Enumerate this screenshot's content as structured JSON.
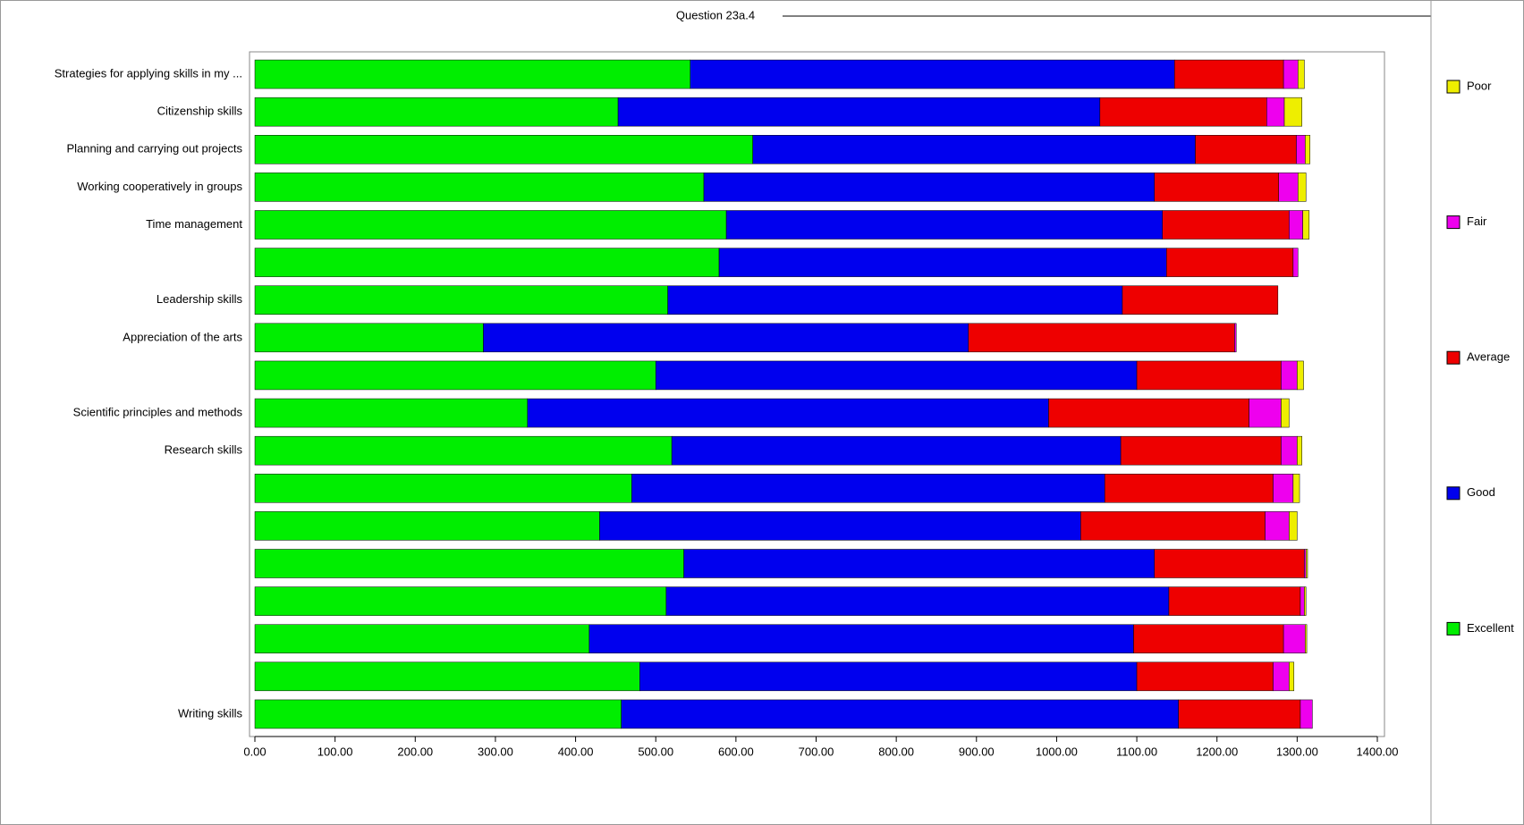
{
  "chart_data": {
    "type": "stacked-bar-horizontal",
    "title": "Question 23a.4",
    "categories": [
      "Strategies for applying skills in my ...",
      "Citizenship skills",
      "Planning and carrying out projects",
      "Working cooperatively in groups",
      "Time management",
      null,
      "Leadership skills",
      "Appreciation of the arts",
      null,
      "Scientific principles and methods",
      "Research skills",
      null,
      null,
      null,
      null,
      null,
      null,
      "Writing skills"
    ],
    "series": [
      {
        "name": "Excellent",
        "color": "#00ee00",
        "values": [
          543,
          453,
          621,
          560,
          588,
          579,
          515,
          285,
          500,
          340,
          520,
          470,
          430,
          535,
          513,
          417,
          480,
          457
        ]
      },
      {
        "name": "Good",
        "color": "#0000ee",
        "values": [
          604,
          601,
          552,
          562,
          544,
          558,
          567,
          605,
          600,
          650,
          560,
          590,
          600,
          587,
          627,
          679,
          620,
          695
        ]
      },
      {
        "name": "Average",
        "color": "#ee0000",
        "values": [
          136,
          208,
          126,
          155,
          158,
          158,
          194,
          332,
          180,
          250,
          200,
          210,
          230,
          187,
          164,
          187,
          170,
          152
        ]
      },
      {
        "name": "Fair",
        "color": "#ee00ee",
        "values": [
          18,
          22,
          11,
          24,
          17,
          6,
          0,
          2,
          20,
          40,
          20,
          25,
          30,
          2,
          5,
          27,
          20,
          15
        ]
      },
      {
        "name": "Poor",
        "color": "#eeee00",
        "values": [
          8,
          22,
          6,
          10,
          8,
          0,
          0,
          0,
          8,
          10,
          6,
          8,
          10,
          2,
          2,
          2,
          6,
          0
        ]
      }
    ],
    "xlim": [
      0,
      1400
    ],
    "xticks": [
      {
        "value": 0,
        "label": "0.00"
      },
      {
        "value": 100,
        "label": "100.00"
      },
      {
        "value": 200,
        "label": "200.00"
      },
      {
        "value": 300,
        "label": "300.00"
      },
      {
        "value": 400,
        "label": "400.00"
      },
      {
        "value": 500,
        "label": "500.00"
      },
      {
        "value": 600,
        "label": "600.00"
      },
      {
        "value": 700,
        "label": "700.00"
      },
      {
        "value": 800,
        "label": "800.00"
      },
      {
        "value": 900,
        "label": "900.00"
      },
      {
        "value": 1000,
        "label": "1000.00"
      },
      {
        "value": 1100,
        "label": "1100.00"
      },
      {
        "value": 1200,
        "label": "1200.00"
      },
      {
        "value": 1300,
        "label": "1300.00"
      },
      {
        "value": 1400,
        "label": "1400.00"
      }
    ],
    "legend": "right"
  }
}
